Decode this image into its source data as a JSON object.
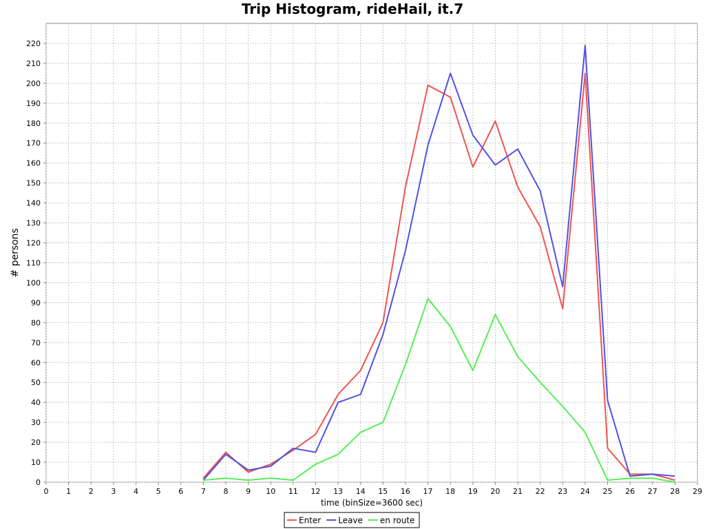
{
  "chart_data": {
    "type": "line",
    "title": "Trip Histogram, rideHail, it.7",
    "xlabel": "time (binSize=3600 sec)",
    "ylabel": "# persons",
    "xlim": [
      0,
      29
    ],
    "ylim": [
      0,
      230
    ],
    "x_ticks": [
      0,
      1,
      2,
      3,
      4,
      5,
      6,
      7,
      8,
      9,
      10,
      11,
      12,
      13,
      14,
      15,
      16,
      17,
      18,
      19,
      20,
      21,
      22,
      23,
      24,
      25,
      26,
      27,
      28,
      29
    ],
    "y_ticks": [
      0,
      10,
      20,
      30,
      40,
      50,
      60,
      70,
      80,
      90,
      100,
      110,
      120,
      130,
      140,
      150,
      160,
      170,
      180,
      190,
      200,
      210,
      220
    ],
    "grid": true,
    "legend_position": "bottom",
    "series": [
      {
        "name": "Enter",
        "color": "#ef5350",
        "x": [
          7,
          8,
          9,
          10,
          11,
          12,
          13,
          14,
          15,
          16,
          17,
          18,
          19,
          20,
          21,
          22,
          23,
          24,
          25,
          26,
          27,
          28
        ],
        "values": [
          2,
          15,
          5,
          9,
          16,
          24,
          44,
          56,
          80,
          148,
          199,
          193,
          158,
          181,
          148,
          128,
          87,
          205,
          17,
          4,
          4,
          1
        ]
      },
      {
        "name": "Leave",
        "color": "#5050e6",
        "x": [
          7,
          8,
          9,
          10,
          11,
          12,
          13,
          14,
          15,
          16,
          17,
          18,
          19,
          20,
          21,
          22,
          23,
          24,
          25,
          26,
          27,
          28
        ],
        "values": [
          1,
          14,
          6,
          8,
          17,
          15,
          40,
          44,
          74,
          116,
          169,
          205,
          174,
          159,
          167,
          146,
          98,
          219,
          41,
          3,
          4,
          3
        ]
      },
      {
        "name": "en route",
        "color": "#55ee55",
        "x": [
          7,
          8,
          9,
          10,
          11,
          12,
          13,
          14,
          15,
          16,
          17,
          18,
          19,
          20,
          21,
          22,
          23,
          24,
          25,
          26,
          27,
          28
        ],
        "values": [
          1,
          2,
          1,
          2,
          1,
          9,
          14,
          25,
          30,
          59,
          92,
          78,
          56,
          84,
          63,
          50,
          38,
          25,
          1,
          2,
          2,
          0
        ]
      }
    ]
  }
}
